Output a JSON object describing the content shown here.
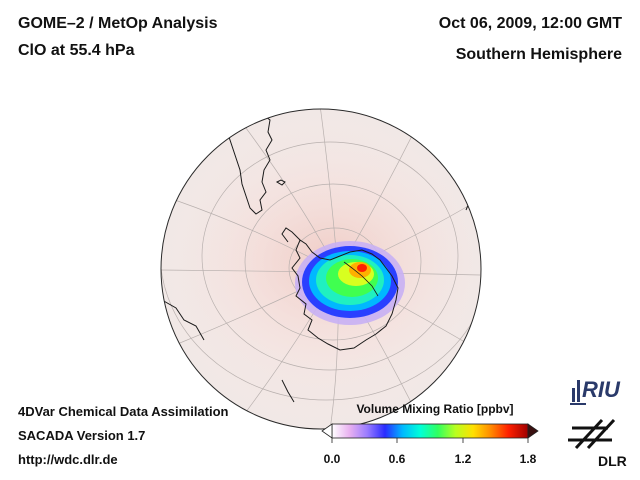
{
  "header": {
    "title": "GOME–2 / MetOp Analysis",
    "subtitle": "ClO at 55.4 hPa",
    "date": "Oct 06, 2009, 12:00 GMT",
    "hemisphere": "Southern Hemisphere"
  },
  "footer": {
    "line1": "4DVar Chemical Data Assimilation",
    "line2": "SACADA Version 1.7",
    "line3": "http://wdc.dlr.de"
  },
  "colorbar": {
    "title": "Volume Mixing Ratio [ppbv]",
    "ticks": [
      "0.0",
      "0.6",
      "1.2",
      "1.8"
    ],
    "colors": [
      "#ffffff",
      "#e8b0f0",
      "#9a7cff",
      "#2a2cff",
      "#00b8ff",
      "#00ffd8",
      "#30ff60",
      "#b8ff20",
      "#ffe000",
      "#ff8a00",
      "#ff2000",
      "#a00000"
    ]
  },
  "logos": {
    "riu": "RIU",
    "dlr": "DLR"
  }
}
